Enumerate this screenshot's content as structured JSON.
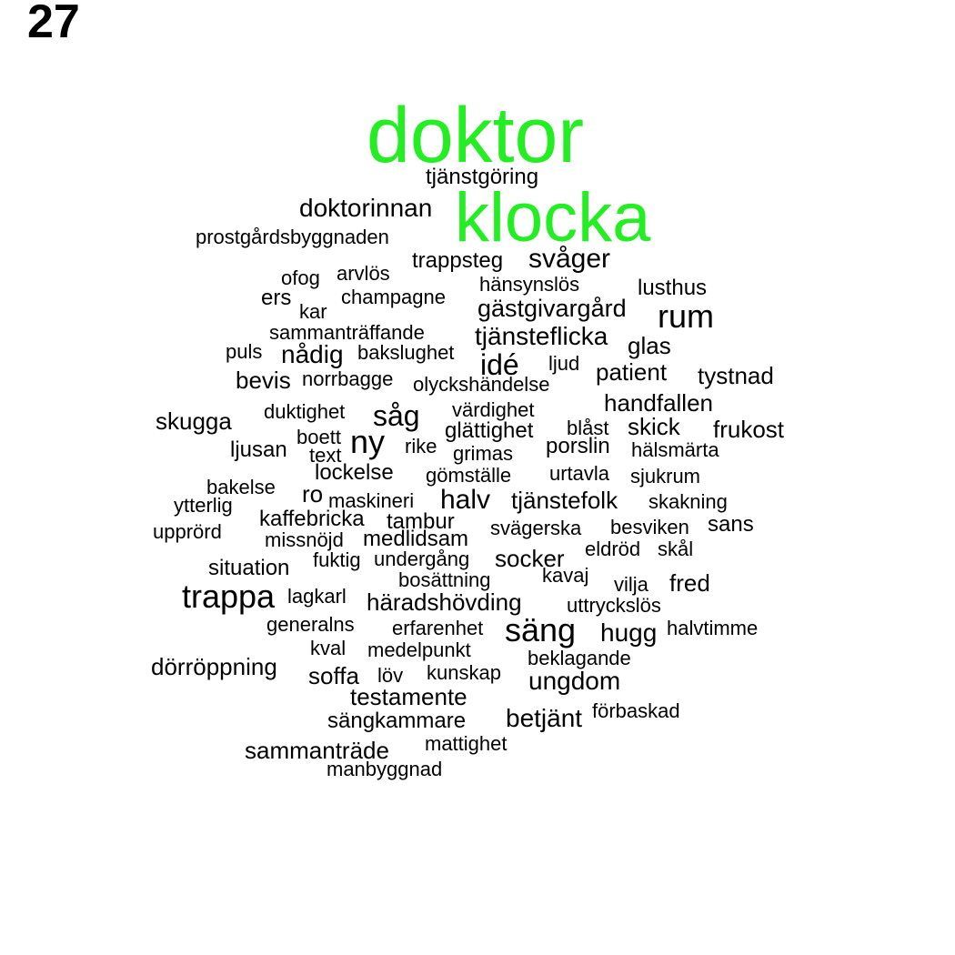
{
  "page_number": "27",
  "colors": {
    "highlight": "#22ee22",
    "text": "#000000"
  },
  "words": [
    {
      "text": "doktor",
      "highlight": true
    },
    {
      "text": "tjänstgöring"
    },
    {
      "text": "doktorinnan"
    },
    {
      "text": "klocka",
      "highlight": true
    },
    {
      "text": "prostgårdsbyggnaden"
    },
    {
      "text": "trappsteg"
    },
    {
      "text": "svåger"
    },
    {
      "text": "ofog"
    },
    {
      "text": "arvlös"
    },
    {
      "text": "hänsynslös"
    },
    {
      "text": "lusthus"
    },
    {
      "text": "ers"
    },
    {
      "text": "kar"
    },
    {
      "text": "champagne"
    },
    {
      "text": "gästgivargård"
    },
    {
      "text": "rum"
    },
    {
      "text": "sammanträffande"
    },
    {
      "text": "tjänsteflicka"
    },
    {
      "text": "glas"
    },
    {
      "text": "puls"
    },
    {
      "text": "nådig"
    },
    {
      "text": "bakslughet"
    },
    {
      "text": "idé"
    },
    {
      "text": "ljud"
    },
    {
      "text": "patient"
    },
    {
      "text": "tystnad"
    },
    {
      "text": "bevis"
    },
    {
      "text": "norrbagge"
    },
    {
      "text": "olyckshändelse"
    },
    {
      "text": "handfallen"
    },
    {
      "text": "värdighet"
    },
    {
      "text": "duktighet"
    },
    {
      "text": "såg"
    },
    {
      "text": "skugga"
    },
    {
      "text": "blåst"
    },
    {
      "text": "skick"
    },
    {
      "text": "frukost"
    },
    {
      "text": "glättighet"
    },
    {
      "text": "boett"
    },
    {
      "text": "ny"
    },
    {
      "text": "rike"
    },
    {
      "text": "porslin"
    },
    {
      "text": "hälsmärta"
    },
    {
      "text": "ljusan"
    },
    {
      "text": "text"
    },
    {
      "text": "grimas"
    },
    {
      "text": "lockelse"
    },
    {
      "text": "gömställe"
    },
    {
      "text": "urtavla"
    },
    {
      "text": "sjukrum"
    },
    {
      "text": "bakelse"
    },
    {
      "text": "ro"
    },
    {
      "text": "maskineri"
    },
    {
      "text": "halv"
    },
    {
      "text": "tjänstefolk"
    },
    {
      "text": "skakning"
    },
    {
      "text": "ytterlig"
    },
    {
      "text": "kaffebricka"
    },
    {
      "text": "tambur"
    },
    {
      "text": "svägerska"
    },
    {
      "text": "besviken"
    },
    {
      "text": "sans"
    },
    {
      "text": "upprörd"
    },
    {
      "text": "missnöjd"
    },
    {
      "text": "medlidsam"
    },
    {
      "text": "eldröd"
    },
    {
      "text": "skål"
    },
    {
      "text": "fuktig"
    },
    {
      "text": "undergång"
    },
    {
      "text": "socker"
    },
    {
      "text": "situation"
    },
    {
      "text": "kavaj"
    },
    {
      "text": "bosättning"
    },
    {
      "text": "vilja"
    },
    {
      "text": "fred"
    },
    {
      "text": "trappa"
    },
    {
      "text": "lagkarl"
    },
    {
      "text": "häradshövding"
    },
    {
      "text": "uttryckslös"
    },
    {
      "text": "generalns"
    },
    {
      "text": "erfarenhet"
    },
    {
      "text": "säng"
    },
    {
      "text": "hugg"
    },
    {
      "text": "halvtimme"
    },
    {
      "text": "kval"
    },
    {
      "text": "medelpunkt"
    },
    {
      "text": "beklagande"
    },
    {
      "text": "dörröppning"
    },
    {
      "text": "soffa"
    },
    {
      "text": "löv"
    },
    {
      "text": "kunskap"
    },
    {
      "text": "ungdom"
    },
    {
      "text": "testamente"
    },
    {
      "text": "förbaskad"
    },
    {
      "text": "sängkammare"
    },
    {
      "text": "betjänt"
    },
    {
      "text": "mattighet"
    },
    {
      "text": "sammanträde"
    },
    {
      "text": "manbyggnad"
    }
  ]
}
